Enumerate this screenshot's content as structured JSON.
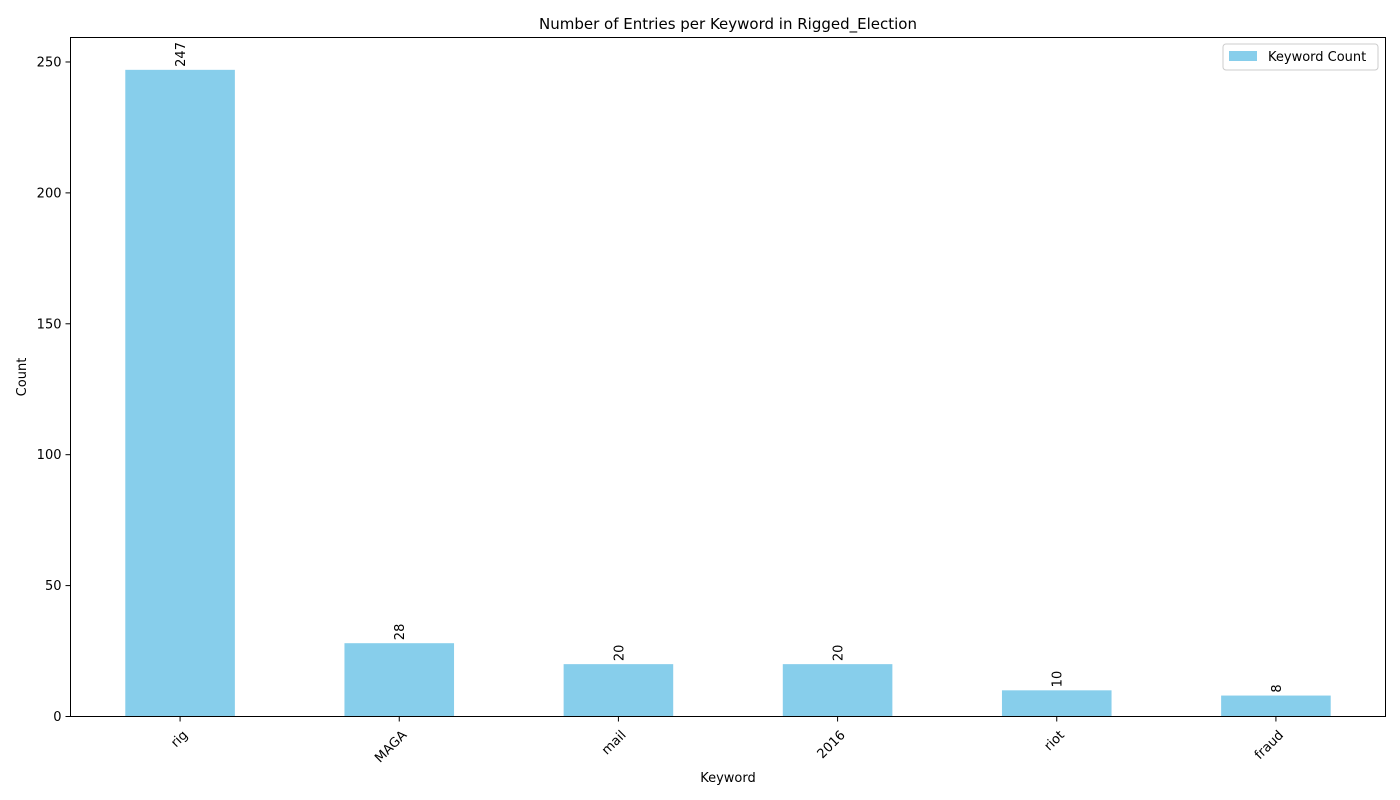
{
  "chart_data": {
    "type": "bar",
    "title": "Number of Entries per Keyword in Rigged_Election",
    "xlabel": "Keyword",
    "ylabel": "Count",
    "categories": [
      "rig",
      "MAGA",
      "mail",
      "2016",
      "riot",
      "fraud"
    ],
    "series": [
      {
        "name": "Keyword Count",
        "values": [
          247,
          28,
          20,
          20,
          10,
          8
        ]
      }
    ],
    "data_labels": [
      "247",
      "28",
      "20",
      "20",
      "10",
      "8"
    ],
    "ylim": [
      0,
      259.35
    ],
    "yticks": [
      0,
      50,
      100,
      150,
      200,
      250
    ],
    "grid": false,
    "legend_position": "top-right",
    "bar_color": "#87ceeb"
  }
}
